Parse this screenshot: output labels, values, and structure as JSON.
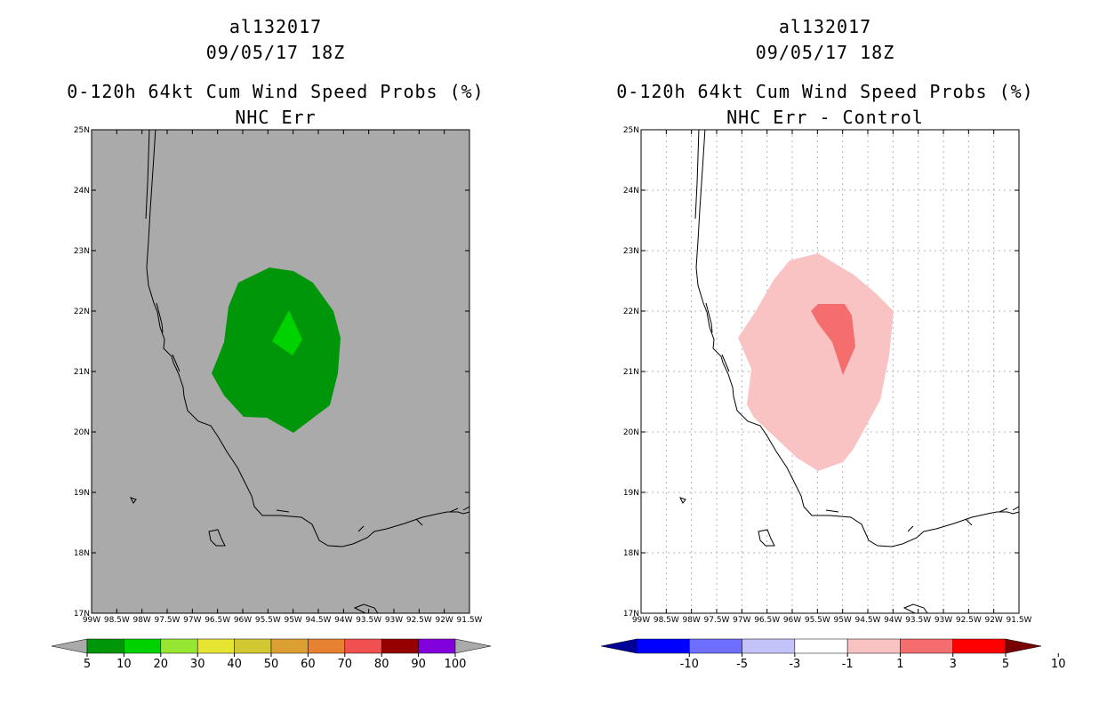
{
  "left_panel": {
    "title_lines": [
      "al132017",
      "09/05/17 18Z",
      "0-120h 64kt Cum Wind Speed Probs (%)",
      "NHC Err"
    ],
    "background_color": "#aaaaaa",
    "contour_colors": [
      "#00960a",
      "#00d200"
    ],
    "colorbar": {
      "colors": [
        "#aaaaaa",
        "#00960a",
        "#00d200",
        "#96e632",
        "#e6e632",
        "#d2c832",
        "#dca032",
        "#e68232",
        "#f05050",
        "#960000",
        "#8200dc",
        "#aaaaaa"
      ],
      "labels": [
        "5",
        "10",
        "20",
        "30",
        "40",
        "50",
        "60",
        "70",
        "80",
        "90",
        "100"
      ]
    }
  },
  "right_panel": {
    "title_lines": [
      "al132017",
      "09/05/17 18Z",
      "0-120h 64kt Cum Wind Speed Probs (%)",
      "NHC Err - Control"
    ],
    "background_color": "#ffffff",
    "contour_colors": [
      "#fac3c3",
      "#f56e6e"
    ],
    "colorbar": {
      "colors": [
        "#000096",
        "#0000ff",
        "#6e6eff",
        "#c3c3fa",
        "#ffffff",
        "#fac3c3",
        "#f56e6e",
        "#ff0000",
        "#780000"
      ],
      "labels": [
        "-10",
        "-5",
        "-3",
        "-1",
        "1",
        "3",
        "5",
        "10"
      ]
    }
  },
  "axes": {
    "lat_labels": [
      "25N",
      "24N",
      "23N",
      "22N",
      "21N",
      "20N",
      "19N",
      "18N",
      "17N"
    ],
    "lon_labels": [
      "99W",
      "98.5W",
      "98W",
      "97.5W",
      "97W",
      "96.5W",
      "96W",
      "95.5W",
      "95W",
      "94.5W",
      "94W",
      "93.5W",
      "93W",
      "92.5W",
      "92W",
      "91.5W"
    ]
  }
}
